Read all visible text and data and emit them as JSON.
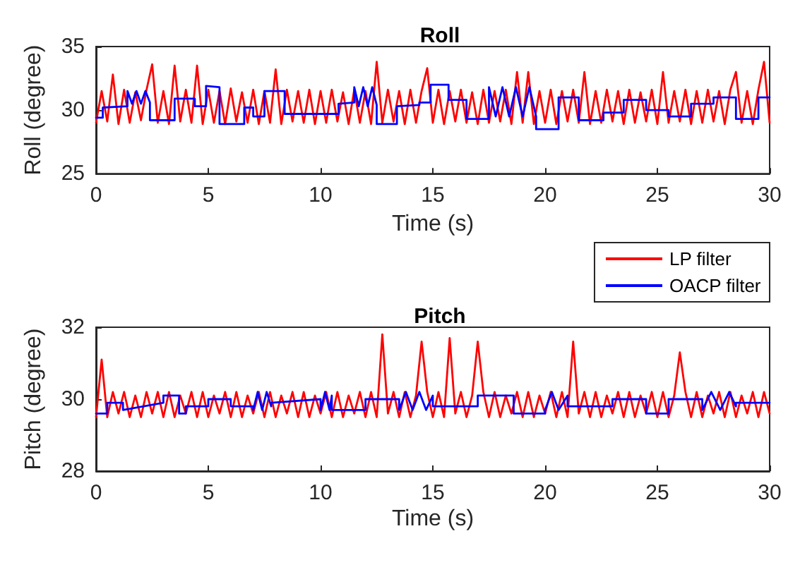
{
  "chart_data": [
    {
      "type": "line",
      "title": "Roll",
      "xlabel": "Time (s)",
      "ylabel": "Roll (degree)",
      "xlim": [
        0,
        30
      ],
      "xticks": [
        0,
        5,
        10,
        15,
        20,
        25,
        30
      ],
      "ylim": [
        25,
        35
      ],
      "yticks": [
        25,
        30,
        35
      ],
      "grid": false,
      "legend": false,
      "marker": "none",
      "line_style": "solid",
      "series": [
        {
          "color": "#ff0000",
          "x": [
            0,
            0.25,
            0.5,
            0.75,
            1,
            1.25,
            1.5,
            1.75,
            2,
            2.25,
            2.5,
            2.75,
            3,
            3.25,
            3.5,
            3.75,
            4,
            4.25,
            4.5,
            4.75,
            5,
            5.25,
            5.5,
            5.75,
            6,
            6.25,
            6.5,
            6.75,
            7,
            7.25,
            7.5,
            7.75,
            8,
            8.25,
            8.5,
            8.75,
            9,
            9.25,
            9.5,
            9.75,
            10,
            10.25,
            10.5,
            10.75,
            11,
            11.25,
            11.5,
            11.75,
            12,
            12.25,
            12.5,
            12.75,
            13,
            13.25,
            13.5,
            13.75,
            14,
            14.25,
            14.5,
            14.75,
            15,
            15.25,
            15.5,
            15.75,
            16,
            16.25,
            16.5,
            16.75,
            17,
            17.25,
            17.5,
            17.75,
            18,
            18.25,
            18.5,
            18.75,
            19,
            19.25,
            19.5,
            19.75,
            20,
            20.25,
            20.5,
            20.75,
            21,
            21.25,
            21.5,
            21.75,
            22,
            22.25,
            22.5,
            22.75,
            23,
            23.25,
            23.5,
            23.75,
            24,
            24.25,
            24.5,
            24.75,
            25,
            25.25,
            25.5,
            25.75,
            26,
            26.25,
            26.5,
            26.75,
            27,
            27.25,
            27.5,
            27.75,
            28,
            28.25,
            28.5,
            28.75,
            29,
            29.25,
            29.5,
            29.75,
            30
          ],
          "values": [
            29.0,
            31.5,
            29.1,
            32.8,
            28.9,
            31.6,
            29.0,
            31.4,
            29.2,
            31.6,
            33.6,
            29.0,
            31.5,
            28.9,
            33.5,
            29.1,
            31.6,
            29.0,
            33.5,
            28.9,
            31.6,
            29.0,
            31.5,
            28.9,
            31.7,
            29.1,
            31.4,
            29.0,
            31.6,
            28.9,
            31.5,
            29.0,
            33.2,
            28.9,
            31.6,
            29.1,
            31.5,
            29.0,
            31.6,
            28.9,
            31.5,
            29.0,
            31.6,
            29.1,
            31.4,
            28.9,
            31.6,
            29.0,
            31.5,
            28.9,
            33.8,
            29.0,
            31.6,
            29.1,
            31.5,
            28.9,
            31.6,
            29.0,
            31.5,
            33.3,
            29.0,
            31.6,
            28.9,
            31.5,
            29.1,
            31.6,
            29.0,
            31.4,
            28.9,
            31.6,
            29.0,
            31.5,
            29.1,
            31.6,
            28.9,
            33.0,
            29.0,
            33.0,
            28.9,
            31.5,
            29.0,
            31.6,
            28.9,
            31.5,
            29.1,
            31.6,
            29.0,
            33.0,
            28.9,
            31.5,
            29.0,
            31.6,
            29.1,
            31.5,
            28.9,
            31.6,
            29.0,
            31.4,
            29.1,
            31.6,
            28.9,
            33.0,
            29.0,
            31.5,
            29.1,
            31.6,
            28.9,
            31.5,
            29.0,
            31.6,
            29.1,
            31.5,
            28.9,
            31.6,
            33.0,
            29.0,
            31.5,
            28.9,
            31.6,
            33.8,
            29.0
          ]
        },
        {
          "color": "#0000ff",
          "x": [
            0,
            0.3,
            0.3,
            1.4,
            1.4,
            1.6,
            1.8,
            2.0,
            2.2,
            2.4,
            2.4,
            3.5,
            3.5,
            4.4,
            4.4,
            4.9,
            4.9,
            5.5,
            5.5,
            6.6,
            6.6,
            7.0,
            7.0,
            7.5,
            7.5,
            8.4,
            8.4,
            10.8,
            10.8,
            11.5,
            11.5,
            11.7,
            11.9,
            12.1,
            12.3,
            12.5,
            12.5,
            13.4,
            13.4,
            14.4,
            14.4,
            14.9,
            14.9,
            15.7,
            15.7,
            16.5,
            16.5,
            17.5,
            17.5,
            17.8,
            18.1,
            18.4,
            18.7,
            19.0,
            19.3,
            19.6,
            19.6,
            20.6,
            20.6,
            21.5,
            21.5,
            22.6,
            22.6,
            23.5,
            23.5,
            24.5,
            24.5,
            25.5,
            25.5,
            26.5,
            26.5,
            27.5,
            27.5,
            28.5,
            28.5,
            29.5,
            29.5,
            30
          ],
          "values": [
            29.4,
            29.4,
            30.2,
            30.3,
            31.5,
            30.5,
            31.5,
            30.5,
            31.5,
            30.6,
            29.2,
            29.2,
            30.9,
            30.9,
            30.3,
            30.3,
            31.9,
            31.8,
            28.9,
            28.9,
            30.2,
            30.2,
            29.5,
            29.5,
            31.5,
            31.5,
            29.7,
            29.7,
            30.5,
            30.6,
            31.8,
            30.3,
            31.8,
            30.3,
            31.8,
            30.4,
            28.9,
            28.9,
            30.3,
            30.4,
            30.6,
            30.6,
            32.0,
            32.0,
            30.8,
            30.8,
            29.3,
            29.3,
            31.8,
            29.5,
            31.8,
            29.5,
            31.8,
            29.5,
            31.8,
            29.5,
            28.5,
            28.5,
            31.0,
            31.0,
            29.2,
            29.2,
            29.8,
            29.8,
            30.8,
            30.8,
            30.0,
            30.0,
            29.5,
            29.5,
            30.5,
            30.5,
            31.0,
            31.0,
            29.3,
            29.3,
            31.0,
            31.0
          ]
        }
      ]
    },
    {
      "type": "line",
      "title": "Pitch",
      "xlabel": "Time (s)",
      "ylabel": "Pitch (degree)",
      "xlim": [
        0,
        30
      ],
      "xticks": [
        0,
        5,
        10,
        15,
        20,
        25,
        30
      ],
      "ylim": [
        28,
        32
      ],
      "yticks": [
        28,
        30,
        32
      ],
      "grid": false,
      "legend": "top right",
      "marker": "none",
      "line_style": "solid",
      "series": [
        {
          "name": "LP filter",
          "color": "#ff0000",
          "x": [
            0,
            0.25,
            0.5,
            0.75,
            1,
            1.25,
            1.5,
            1.75,
            2,
            2.25,
            2.5,
            2.75,
            3,
            3.25,
            3.5,
            3.75,
            4,
            4.25,
            4.5,
            4.75,
            5,
            5.25,
            5.5,
            5.75,
            6,
            6.25,
            6.5,
            6.75,
            7,
            7.25,
            7.5,
            7.75,
            8,
            8.25,
            8.5,
            8.75,
            9,
            9.25,
            9.5,
            9.75,
            10,
            10.25,
            10.5,
            10.75,
            11,
            11.25,
            11.5,
            11.75,
            12,
            12.25,
            12.5,
            12.75,
            13,
            13.25,
            13.5,
            13.75,
            14,
            14.25,
            14.5,
            14.75,
            15,
            15.25,
            15.5,
            15.75,
            16,
            16.25,
            16.5,
            16.75,
            17,
            17.25,
            17.5,
            17.75,
            18,
            18.25,
            18.5,
            18.75,
            19,
            19.25,
            19.5,
            19.75,
            20,
            20.25,
            20.5,
            20.75,
            21,
            21.25,
            21.5,
            21.75,
            22,
            22.25,
            22.5,
            22.75,
            23,
            23.25,
            23.5,
            23.75,
            24,
            24.25,
            24.5,
            24.75,
            25,
            25.25,
            25.5,
            25.75,
            26,
            26.25,
            26.5,
            26.75,
            27,
            27.25,
            27.5,
            27.75,
            28,
            28.25,
            28.5,
            28.75,
            29,
            29.25,
            29.5,
            29.75,
            30
          ],
          "values": [
            29.5,
            31.1,
            29.5,
            30.2,
            29.6,
            30.2,
            29.5,
            30.1,
            29.5,
            30.2,
            29.6,
            30.2,
            29.5,
            30.2,
            29.5,
            30.1,
            29.6,
            30.2,
            29.5,
            30.2,
            29.5,
            30.1,
            29.6,
            30.2,
            29.5,
            30.2,
            29.5,
            30.1,
            29.6,
            30.2,
            29.5,
            30.2,
            29.5,
            30.1,
            29.6,
            30.2,
            29.5,
            30.2,
            29.5,
            30.1,
            29.6,
            30.2,
            29.5,
            30.2,
            29.5,
            30.1,
            29.6,
            30.2,
            29.5,
            30.2,
            29.5,
            31.8,
            29.6,
            30.2,
            29.5,
            30.2,
            29.5,
            30.1,
            31.6,
            30.2,
            29.5,
            30.2,
            29.5,
            31.7,
            29.6,
            30.2,
            29.5,
            30.1,
            31.6,
            30.2,
            29.5,
            30.2,
            29.5,
            30.1,
            29.6,
            30.2,
            29.5,
            30.2,
            29.5,
            30.1,
            29.6,
            30.2,
            29.5,
            30.2,
            29.5,
            31.6,
            29.6,
            30.2,
            29.5,
            30.2,
            29.5,
            30.1,
            29.6,
            30.2,
            29.5,
            30.2,
            29.5,
            30.1,
            29.6,
            30.2,
            29.5,
            30.2,
            29.5,
            30.1,
            31.3,
            30.2,
            29.5,
            30.2,
            29.5,
            30.1,
            29.6,
            30.2,
            29.5,
            30.2,
            29.5,
            30.1,
            29.6,
            30.2,
            29.5,
            30.2,
            29.6
          ]
        },
        {
          "name": "OACP filter",
          "color": "#0000ff",
          "x": [
            0,
            0.5,
            0.5,
            1.2,
            1.2,
            3.0,
            3.0,
            3.7,
            3.7,
            4.0,
            4.0,
            5.0,
            5.0,
            6.0,
            6.0,
            7.0,
            7.0,
            7.2,
            7.4,
            7.6,
            7.8,
            7.8,
            10.0,
            10.0,
            10.2,
            10.4,
            10.5,
            10.5,
            12.0,
            12.0,
            13.5,
            13.5,
            13.8,
            14.1,
            14.4,
            14.7,
            15.0,
            15.0,
            17.0,
            17.0,
            18.6,
            18.6,
            20.0,
            20.0,
            20.3,
            20.6,
            21.0,
            21.0,
            23.0,
            23.0,
            24.5,
            24.5,
            25.5,
            25.5,
            27.0,
            27.0,
            27.4,
            27.8,
            28.2,
            28.5,
            28.5,
            30
          ],
          "values": [
            29.6,
            29.6,
            29.9,
            29.9,
            29.7,
            29.9,
            30.1,
            30.1,
            29.6,
            29.6,
            29.8,
            29.8,
            30.0,
            30.0,
            29.8,
            29.8,
            29.7,
            30.2,
            29.7,
            30.2,
            29.8,
            29.9,
            30.0,
            29.7,
            30.2,
            29.7,
            30.1,
            29.7,
            29.7,
            30.0,
            30.0,
            29.7,
            30.2,
            29.7,
            30.2,
            29.7,
            30.1,
            29.8,
            29.8,
            30.1,
            30.1,
            29.6,
            29.6,
            29.7,
            30.2,
            29.7,
            30.1,
            29.8,
            29.8,
            30.0,
            30.0,
            29.6,
            29.6,
            30.0,
            30.0,
            29.7,
            30.2,
            29.7,
            30.2,
            29.8,
            29.9,
            29.9
          ]
        }
      ]
    }
  ]
}
